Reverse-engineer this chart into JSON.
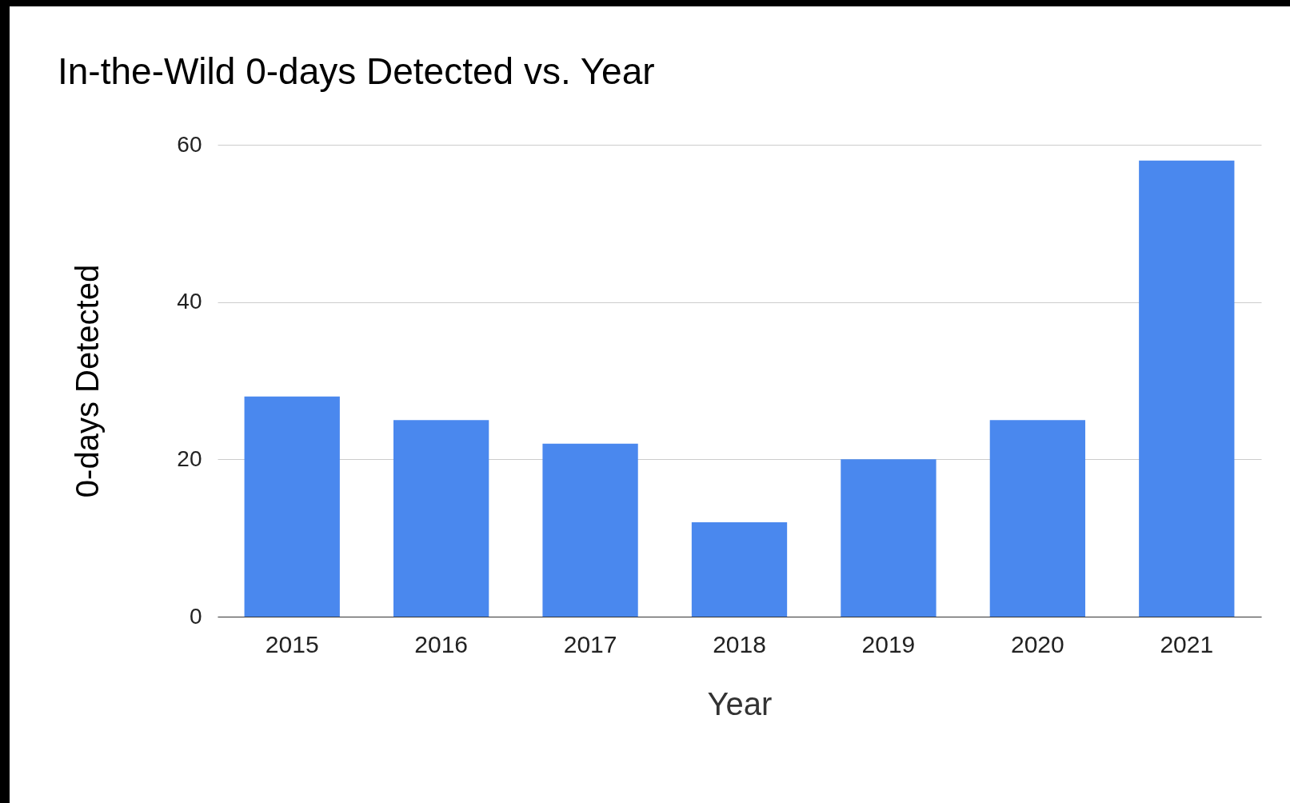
{
  "chart_data": {
    "type": "bar",
    "title": "In-the-Wild 0-days Detected vs. Year",
    "xlabel": "Year",
    "ylabel": "0-days Detected",
    "categories": [
      "2015",
      "2016",
      "2017",
      "2018",
      "2019",
      "2020",
      "2021"
    ],
    "values": [
      28,
      25,
      22,
      12,
      20,
      25,
      58
    ],
    "color": "#4a88ee",
    "ylim": [
      0,
      60
    ],
    "yticks": [
      0,
      20,
      40,
      60
    ],
    "grid": "y"
  }
}
